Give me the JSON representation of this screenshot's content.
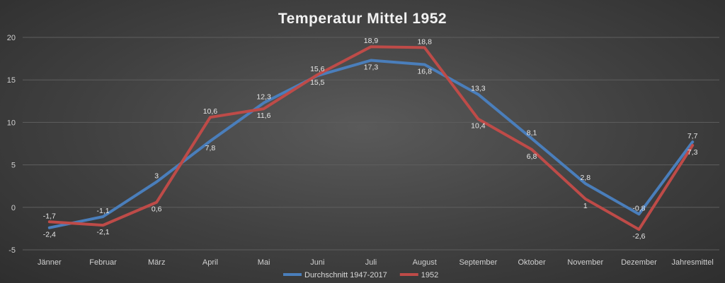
{
  "chart_data": {
    "type": "line",
    "title": "Temperatur Mittel 1952",
    "categories": [
      "Jänner",
      "Februar",
      "März",
      "April",
      "Mai",
      "Juni",
      "Juli",
      "August",
      "September",
      "Oktober",
      "November",
      "Dezember",
      "Jahresmittel"
    ],
    "ylim": [
      -5,
      20
    ],
    "yticks": [
      -5,
      0,
      5,
      10,
      15,
      20
    ],
    "grid": true,
    "legend_position": "bottom",
    "series": [
      {
        "name": "Durchschnitt 1947-2017",
        "color": "#4a7ebb",
        "values": [
          -2.4,
          -1.1,
          3,
          7.8,
          12.3,
          15.5,
          17.3,
          16.8,
          13.3,
          8.1,
          2.8,
          -0.8,
          7.7
        ],
        "labels": [
          "-2,4",
          "-1,1",
          "3",
          "7,8",
          "12,3",
          "15,5",
          "17,3",
          "16,8",
          "13,3",
          "8,1",
          "2,8",
          "-0,8",
          "7,7"
        ]
      },
      {
        "name": "1952",
        "color": "#be4b48",
        "values": [
          -1.7,
          -2.1,
          0.6,
          10.6,
          11.6,
          15.6,
          18.9,
          18.8,
          10.4,
          6.8,
          1,
          -2.6,
          7.3
        ],
        "labels": [
          "-1,7",
          "-2,1",
          "0,6",
          "10,6",
          "11,6",
          "15,6",
          "18,9",
          "18,8",
          "10,4",
          "6,8",
          "1",
          "-2,6",
          "7,3"
        ]
      }
    ]
  }
}
